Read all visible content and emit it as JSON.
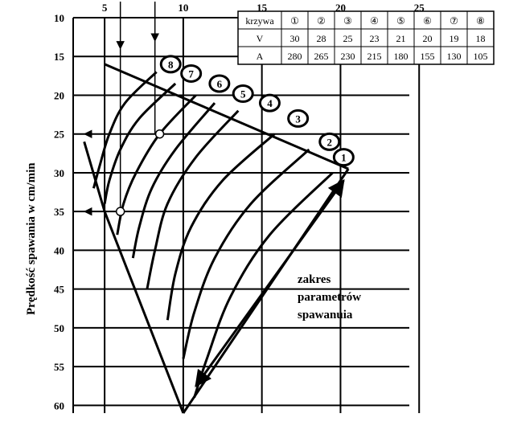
{
  "chart_data": {
    "type": "line",
    "title": "",
    "xlabel": "",
    "ylabel": "Prędkość spawania w cm/min",
    "xlim": [
      3,
      30
    ],
    "ylim": [
      10,
      61
    ],
    "x_ticks": [
      5,
      10,
      15,
      20,
      25
    ],
    "y_ticks": [
      10,
      15,
      20,
      25,
      30,
      35,
      40,
      45,
      50,
      55,
      60
    ],
    "grid": true,
    "table": {
      "header": "krzywa",
      "row_labels": [
        "V",
        "A"
      ],
      "curves": [
        "①",
        "②",
        "③",
        "④",
        "⑤",
        "⑥",
        "⑦",
        "⑧"
      ],
      "V": [
        "30",
        "28",
        "25",
        "23",
        "21",
        "20",
        "19",
        "18"
      ],
      "A": [
        "280",
        "265",
        "230",
        "215",
        "180",
        "155",
        "130",
        "105"
      ]
    },
    "annotation": [
      "zakres",
      "parametrów",
      "spawanuia"
    ],
    "series": [
      {
        "label": "1",
        "points": [
          [
            19.5,
            30
          ],
          [
            15.5,
            38
          ],
          [
            13.0,
            46
          ],
          [
            11.5,
            54
          ],
          [
            10.7,
            59
          ]
        ]
      },
      {
        "label": "2",
        "points": [
          [
            18.0,
            27
          ],
          [
            14.3,
            34
          ],
          [
            12.0,
            41
          ],
          [
            10.7,
            48
          ],
          [
            10.0,
            54
          ]
        ]
      },
      {
        "label": "3",
        "points": [
          [
            15.8,
            25
          ],
          [
            12.5,
            31
          ],
          [
            10.5,
            37
          ],
          [
            9.5,
            43
          ],
          [
            9.0,
            49
          ]
        ]
      },
      {
        "label": "4",
        "points": [
          [
            13.5,
            22
          ],
          [
            10.8,
            28
          ],
          [
            9.0,
            34
          ],
          [
            8.2,
            40
          ],
          [
            7.7,
            45
          ]
        ]
      },
      {
        "label": "5",
        "points": [
          [
            12.0,
            21
          ],
          [
            9.5,
            27
          ],
          [
            8.0,
            32
          ],
          [
            7.2,
            37
          ],
          [
            6.8,
            41
          ]
        ]
      },
      {
        "label": "6",
        "points": [
          [
            10.8,
            20
          ],
          [
            8.5,
            25
          ],
          [
            7.0,
            30
          ],
          [
            6.2,
            34
          ],
          [
            5.8,
            38
          ]
        ]
      },
      {
        "label": "7",
        "points": [
          [
            9.5,
            18.5
          ],
          [
            7.2,
            23
          ],
          [
            6.0,
            27
          ],
          [
            5.3,
            31
          ],
          [
            5.0,
            34
          ]
        ]
      },
      {
        "label": "8",
        "points": [
          [
            8.3,
            17
          ],
          [
            6.3,
            21
          ],
          [
            5.3,
            25
          ],
          [
            4.7,
            29
          ],
          [
            4.3,
            32
          ]
        ]
      }
    ],
    "envelope": {
      "top_line": [
        [
          5.0,
          16
        ],
        [
          20.5,
          29.5
        ]
      ],
      "lower_left": [
        [
          5.0,
          35
        ],
        [
          10.0,
          61
        ]
      ],
      "lower_right": [
        [
          10.0,
          61
        ],
        [
          20.5,
          29.5
        ]
      ]
    },
    "helper_points": [
      [
        8.5,
        25
      ],
      [
        6.0,
        35
      ]
    ]
  }
}
